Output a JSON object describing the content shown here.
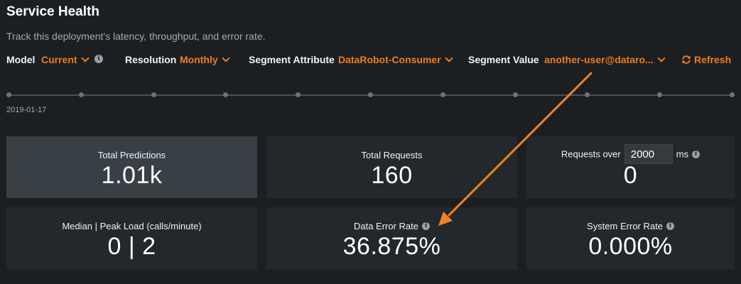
{
  "page": {
    "title": "Service Health",
    "subtitle": "Track this deployment's latency, throughput, and error rate."
  },
  "filters": {
    "model": {
      "label": "Model",
      "value": "Current"
    },
    "resolution": {
      "label": "Resolution",
      "value": "Monthly"
    },
    "segment_attribute": {
      "label": "Segment Attribute",
      "value": "DataRobot-Consumer"
    },
    "segment_value": {
      "label": "Segment Value",
      "value": "another-user@dataro..."
    },
    "refresh_label": "Refresh",
    "info_glyph": "i"
  },
  "timeline": {
    "date": "2019-01-17",
    "dot_count": 11
  },
  "cards": {
    "total_predictions": {
      "label": "Total Predictions",
      "value": "1.01k"
    },
    "total_requests": {
      "label": "Total Requests",
      "value": "160"
    },
    "requests_over": {
      "label": "Requests over",
      "threshold": "2000",
      "unit": "ms",
      "value": "0"
    },
    "load": {
      "label": "Median | Peak Load (calls/minute)",
      "value": "0 | 2"
    },
    "data_error_rate": {
      "label": "Data Error Rate",
      "value": "36.875%"
    },
    "system_error_rate": {
      "label": "System Error Rate",
      "value": "0.000%"
    }
  },
  "icons": {
    "info": "info-icon",
    "refresh": "refresh-icon",
    "dropdown": "chevron-down-icon"
  },
  "colors": {
    "accent": "#f07b1d",
    "background": "#1b1f22",
    "card": "#22282b",
    "card_active": "#394045"
  }
}
